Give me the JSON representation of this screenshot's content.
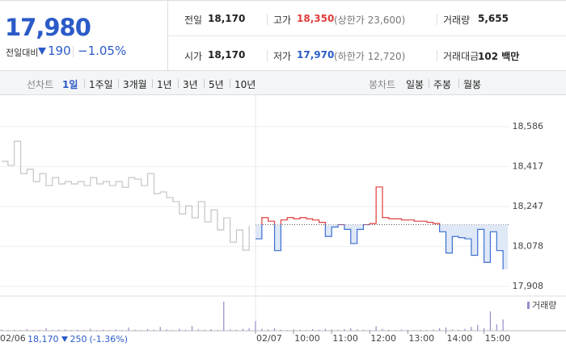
{
  "header": {
    "price": "17,980",
    "change_label": "전일대비",
    "change": "190",
    "change_pct": "−1.05%",
    "stats": [
      {
        "label": "전일",
        "value": "18,170"
      },
      {
        "label": "고가",
        "value": "18,350",
        "sub": "(상한가 23,600)"
      },
      {
        "label": "거래량",
        "value": "5,655"
      },
      {
        "label": "시가",
        "value": "18,170"
      },
      {
        "label": "저가",
        "value": "17,970",
        "sub": "(하한가 12,720)"
      },
      {
        "label": "거래대금",
        "value": "102 백만"
      }
    ]
  },
  "tabs": {
    "line_label": "선차트",
    "line": [
      "1일",
      "1주일",
      "3개월",
      "1년",
      "3년",
      "5년",
      "10년"
    ],
    "selected": 0,
    "candle_label": "봉차트",
    "candle": [
      "일봉",
      "주봉",
      "월봉"
    ]
  },
  "info": {
    "close": "18,170",
    "change": "250",
    "pct": "(-1.36%)"
  },
  "chart_data": {
    "type": "line",
    "categories": [
      "02/06",
      null,
      null,
      null,
      null,
      null,
      null,
      null,
      null,
      null,
      null,
      null,
      null,
      null,
      null,
      null,
      null,
      null,
      null,
      null,
      null,
      null,
      null,
      null,
      null,
      null,
      null,
      null,
      null,
      null,
      null,
      null,
      null,
      null,
      null,
      null,
      null,
      null,
      null,
      null,
      "02/07",
      null,
      null,
      null,
      null,
      null,
      "10:00",
      null,
      null,
      null,
      null,
      null,
      "11:00",
      null,
      null,
      null,
      null,
      null,
      "12:00",
      null,
      null,
      null,
      null,
      null,
      "13:00",
      null,
      null,
      null,
      null,
      null,
      "14:00",
      null,
      null,
      null,
      null,
      null,
      "15:00",
      null,
      null,
      null
    ],
    "series": [
      {
        "color": "#c4c4c4",
        "values": [
          18439,
          18422,
          18524,
          18387,
          18405,
          18353,
          18387,
          18336,
          18370,
          18343,
          18353,
          18343,
          18353,
          18336,
          18370,
          18343,
          18353,
          18336,
          18353,
          18329,
          18370,
          18363,
          18336,
          18387,
          18302,
          18309,
          18285,
          18268,
          18216,
          18250,
          18199,
          18268,
          18182,
          18233,
          18148,
          18199,
          18096,
          18148,
          18062,
          18165,
          null,
          null,
          null,
          null,
          null,
          null,
          null,
          null,
          null,
          null,
          null,
          null,
          null,
          null,
          null,
          null,
          null,
          null,
          null,
          null,
          null,
          null,
          null,
          null,
          null,
          null,
          null,
          null,
          null,
          null,
          null,
          null,
          null,
          null,
          null,
          null,
          null,
          null,
          null,
          null
        ]
      },
      {
        "color": "#e03c3c",
        "color_down": "#3b6fd0",
        "fill_down": "#dfe8f7",
        "values": [
          null,
          null,
          null,
          null,
          null,
          null,
          null,
          null,
          null,
          null,
          null,
          null,
          null,
          null,
          null,
          null,
          null,
          null,
          null,
          null,
          null,
          null,
          null,
          null,
          null,
          null,
          null,
          null,
          null,
          null,
          null,
          null,
          null,
          null,
          null,
          null,
          null,
          null,
          null,
          null,
          18110,
          18200,
          18185,
          18060,
          18190,
          18200,
          18195,
          18200,
          18195,
          18190,
          18180,
          18120,
          18160,
          18170,
          18150,
          18090,
          18150,
          18170,
          18175,
          18330,
          18200,
          18195,
          18195,
          18190,
          18190,
          18185,
          18185,
          18180,
          18175,
          18140,
          18050,
          18120,
          18115,
          18110,
          18040,
          18150,
          18010,
          18140,
          18060,
          17980
        ]
      }
    ],
    "baseline": 18170,
    "ylim": [
      17874,
      18706
    ],
    "yticks": [
      {
        "value": 18586,
        "label": "18,586"
      },
      {
        "value": 18417,
        "label": "18,417"
      },
      {
        "value": 18247,
        "label": "18,247"
      },
      {
        "value": 18078,
        "label": "18,078"
      },
      {
        "value": 17908,
        "label": "17,908"
      }
    ],
    "grid": true,
    "volume": {
      "name": "거래량",
      "color": "#9b8ac9",
      "ylim": [
        0,
        100
      ],
      "values": [
        4,
        2,
        3,
        2,
        5,
        2,
        3,
        8,
        2,
        3,
        4,
        2,
        3,
        2,
        6,
        2,
        3,
        2,
        4,
        2,
        10,
        3,
        2,
        5,
        3,
        12,
        4,
        2,
        6,
        3,
        15,
        4,
        3,
        5,
        2,
        90,
        4,
        3,
        6,
        8,
        30,
        6,
        4,
        8,
        3,
        2,
        4,
        3,
        2,
        5,
        3,
        6,
        4,
        3,
        5,
        8,
        4,
        3,
        2,
        14,
        6,
        3,
        2,
        4,
        3,
        2,
        3,
        2,
        3,
        8,
        10,
        4,
        3,
        6,
        12,
        18,
        8,
        60,
        20,
        35
      ]
    }
  }
}
